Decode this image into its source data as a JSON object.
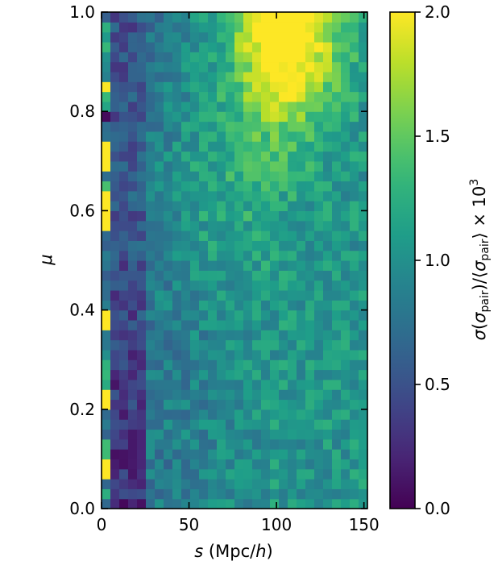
{
  "chart_data": {
    "type": "heatmap",
    "title": "",
    "xlabel_parts": {
      "var": "s",
      "pre": "(Mpc/",
      "unit": "h",
      "post": ")"
    },
    "ylabel": "μ",
    "colorbar_label_parts": {
      "sigma": "σ",
      "open": "(",
      "sigma_inner": "σ",
      "sub": "pair",
      "mid": ")/⟨",
      "sigma_inner2": "σ",
      "sub2": "pair",
      "close": "⟩ × 10",
      "sup": "3"
    },
    "x_range": [
      0,
      152
    ],
    "y_range": [
      0,
      1
    ],
    "color_range": [
      0,
      2
    ],
    "colormap": "viridis",
    "x_bins": 30,
    "y_bins": 50,
    "x_ticks": [
      {
        "value": 0,
        "label": "0"
      },
      {
        "value": 50,
        "label": "50"
      },
      {
        "value": 100,
        "label": "100"
      },
      {
        "value": 150,
        "label": "150"
      }
    ],
    "y_ticks": [
      {
        "value": 0.0,
        "label": "0.0"
      },
      {
        "value": 0.2,
        "label": "0.2"
      },
      {
        "value": 0.4,
        "label": "0.4"
      },
      {
        "value": 0.6,
        "label": "0.6"
      },
      {
        "value": 0.8,
        "label": "0.8"
      },
      {
        "value": 1.0,
        "label": "1.0"
      }
    ],
    "colorbar_ticks": [
      {
        "value": 0.0,
        "label": "0.0"
      },
      {
        "value": 0.5,
        "label": "0.5"
      },
      {
        "value": 1.0,
        "label": "1.0"
      },
      {
        "value": 1.5,
        "label": "1.5"
      },
      {
        "value": 2.0,
        "label": "2.0"
      }
    ],
    "features": {
      "high_region": {
        "s_center": 105,
        "mu_center": 0.95,
        "peak": 2.0
      },
      "left_column_bright_mu": [
        0.08,
        0.21,
        0.22,
        0.38,
        0.58,
        0.6,
        0.62,
        0.69,
        0.72,
        0.85
      ]
    }
  }
}
